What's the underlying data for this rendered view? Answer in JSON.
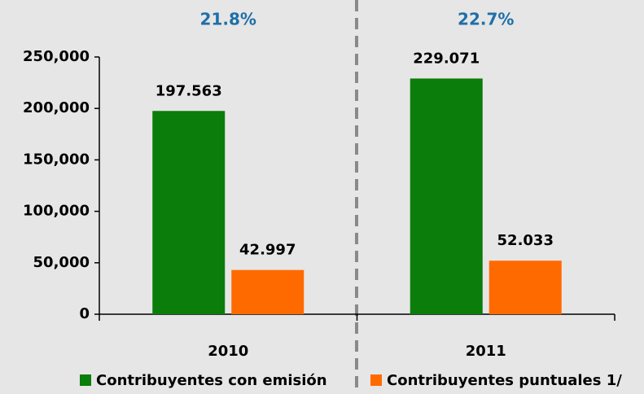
{
  "chart_data": {
    "type": "bar",
    "categories": [
      "2010",
      "2011"
    ],
    "annotations": [
      "21.8%",
      "22.7%"
    ],
    "series": [
      {
        "name": "Contribuyentes con emisión",
        "color": "#0a7d0a",
        "values": [
          197563,
          229071
        ],
        "value_labels": [
          "197.563",
          "229.071"
        ]
      },
      {
        "name": "Contribuyentes puntuales 1/",
        "color": "#ff6a00",
        "values": [
          42997,
          52033
        ],
        "value_labels": [
          "42.997",
          "52.033"
        ]
      }
    ],
    "ylim": [
      0,
      250000
    ],
    "yticks": [
      0,
      {
        "value": 50000,
        "label": "50,000"
      },
      {
        "value": 100000,
        "label": "100,000"
      },
      {
        "value": 150000,
        "label": "150,000"
      },
      {
        "value": 200000,
        "label": "200,000"
      },
      {
        "value": 250000,
        "label": "250,000"
      }
    ],
    "grid": false,
    "legend": "bottom"
  }
}
